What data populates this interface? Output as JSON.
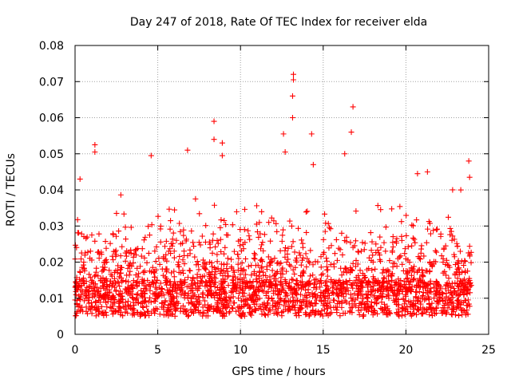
{
  "chart_data": {
    "type": "scatter",
    "title": "Day 247 of 2018, Rate Of TEC Index for receiver elda",
    "xlabel": "GPS time / hours",
    "ylabel": "ROTI / TECUs",
    "xlim": [
      0,
      25
    ],
    "ylim": [
      0,
      0.08
    ],
    "xticks": [
      0,
      5,
      10,
      15,
      20,
      25
    ],
    "xtick_labels": [
      "0",
      "5",
      "10",
      "15",
      "20",
      "25"
    ],
    "yticks": [
      0,
      0.01,
      0.02,
      0.03,
      0.04,
      0.05,
      0.06,
      0.07,
      0.08
    ],
    "ytick_labels": [
      "0",
      "0.01",
      "0.02",
      "0.03",
      "0.04",
      "0.05",
      "0.06",
      "0.07",
      "0.08"
    ],
    "grid": true,
    "marker": "+",
    "color": "#ff0000",
    "series": [
      {
        "name": "ROTI",
        "x_range": [
          0.0,
          23.95
        ],
        "baseline_band": [
          0.005,
          0.015
        ],
        "notable_points": [
          {
            "x": 0.3,
            "y": 0.043
          },
          {
            "x": 1.2,
            "y": 0.0525
          },
          {
            "x": 1.2,
            "y": 0.0505
          },
          {
            "x": 4.6,
            "y": 0.0495
          },
          {
            "x": 6.8,
            "y": 0.051
          },
          {
            "x": 8.4,
            "y": 0.059
          },
          {
            "x": 8.4,
            "y": 0.054
          },
          {
            "x": 8.9,
            "y": 0.053
          },
          {
            "x": 8.9,
            "y": 0.0495
          },
          {
            "x": 12.6,
            "y": 0.0555
          },
          {
            "x": 12.7,
            "y": 0.0505
          },
          {
            "x": 13.2,
            "y": 0.072
          },
          {
            "x": 13.2,
            "y": 0.0705
          },
          {
            "x": 13.15,
            "y": 0.066
          },
          {
            "x": 13.15,
            "y": 0.06
          },
          {
            "x": 14.3,
            "y": 0.0555
          },
          {
            "x": 14.4,
            "y": 0.047
          },
          {
            "x": 16.8,
            "y": 0.063
          },
          {
            "x": 16.7,
            "y": 0.056
          },
          {
            "x": 16.3,
            "y": 0.05
          },
          {
            "x": 20.7,
            "y": 0.0445
          },
          {
            "x": 21.3,
            "y": 0.045
          },
          {
            "x": 23.8,
            "y": 0.048
          },
          {
            "x": 23.85,
            "y": 0.0435
          }
        ]
      }
    ]
  }
}
